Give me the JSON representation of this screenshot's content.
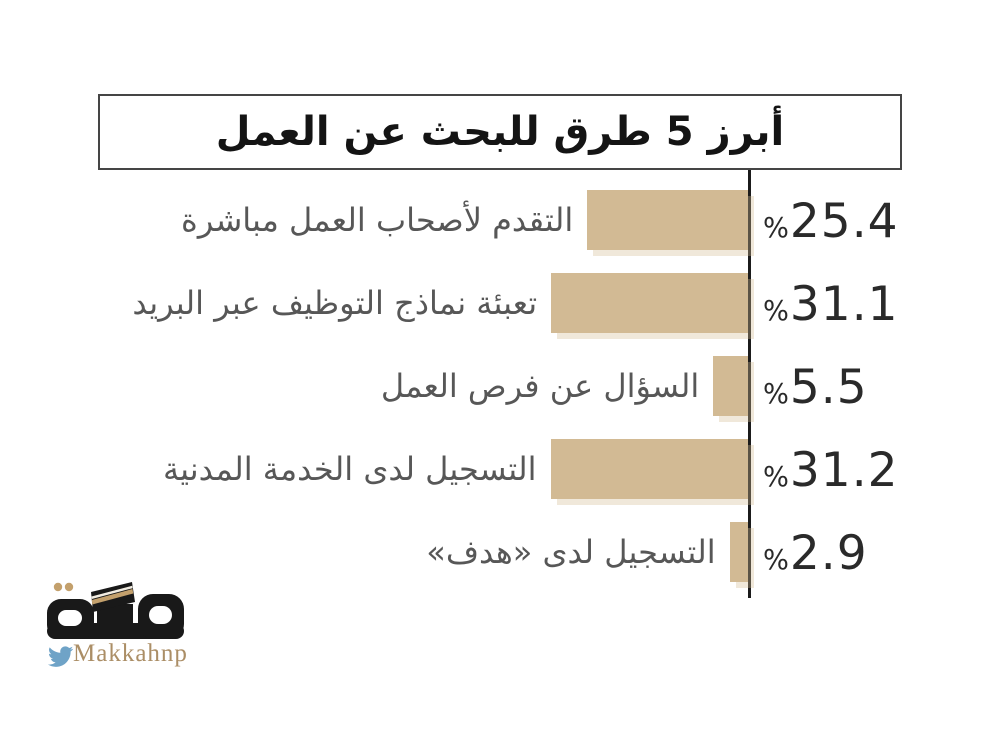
{
  "title": "أبرز 5 طرق للبحث عن العمل",
  "chart_data": {
    "type": "bar",
    "orientation": "horizontal_rtl",
    "title": "أبرز 5 طرق للبحث عن العمل",
    "percent_sign": "%",
    "unit": "percent",
    "xlim": [
      0,
      35
    ],
    "grid": false,
    "legend": "none",
    "categories": [
      "التقدم لأصحاب العمل مباشرة",
      "تعبئة نماذج التوظيف عبر البريد",
      "السؤال عن فرص العمل",
      "التسجيل لدى الخدمة المدنية",
      "التسجيل لدى «هدف»"
    ],
    "values": [
      25.4,
      31.1,
      5.5,
      31.2,
      2.9
    ],
    "rows": [
      {
        "label": "التقدم لأصحاب العمل مباشرة",
        "value": 25.4,
        "value_display": "25.4"
      },
      {
        "label": "تعبئة نماذج التوظيف عبر البريد",
        "value": 31.1,
        "value_display": "31.1"
      },
      {
        "label": "السؤال عن فرص العمل",
        "value": 5.5,
        "value_display": "5.5"
      },
      {
        "label": "التسجيل لدى الخدمة المدنية",
        "value": 31.2,
        "value_display": "31.2"
      },
      {
        "label": "التسجيل لدى «هدف»",
        "value": 2.9,
        "value_display": "2.9"
      }
    ]
  },
  "footer": {
    "brand_name": "مكة",
    "twitter_handle": "Makkahnp"
  },
  "colors": {
    "bar": "#d2ba94",
    "axis": "#1b1b1b",
    "title_text": "#141414",
    "category_text": "#575757",
    "value_text": "#2a2a2a",
    "logo_black": "#191919",
    "logo_gold": "#c3a06c",
    "handle_gold": "#ab8e66",
    "bird_blue": "#6fa3c7"
  }
}
